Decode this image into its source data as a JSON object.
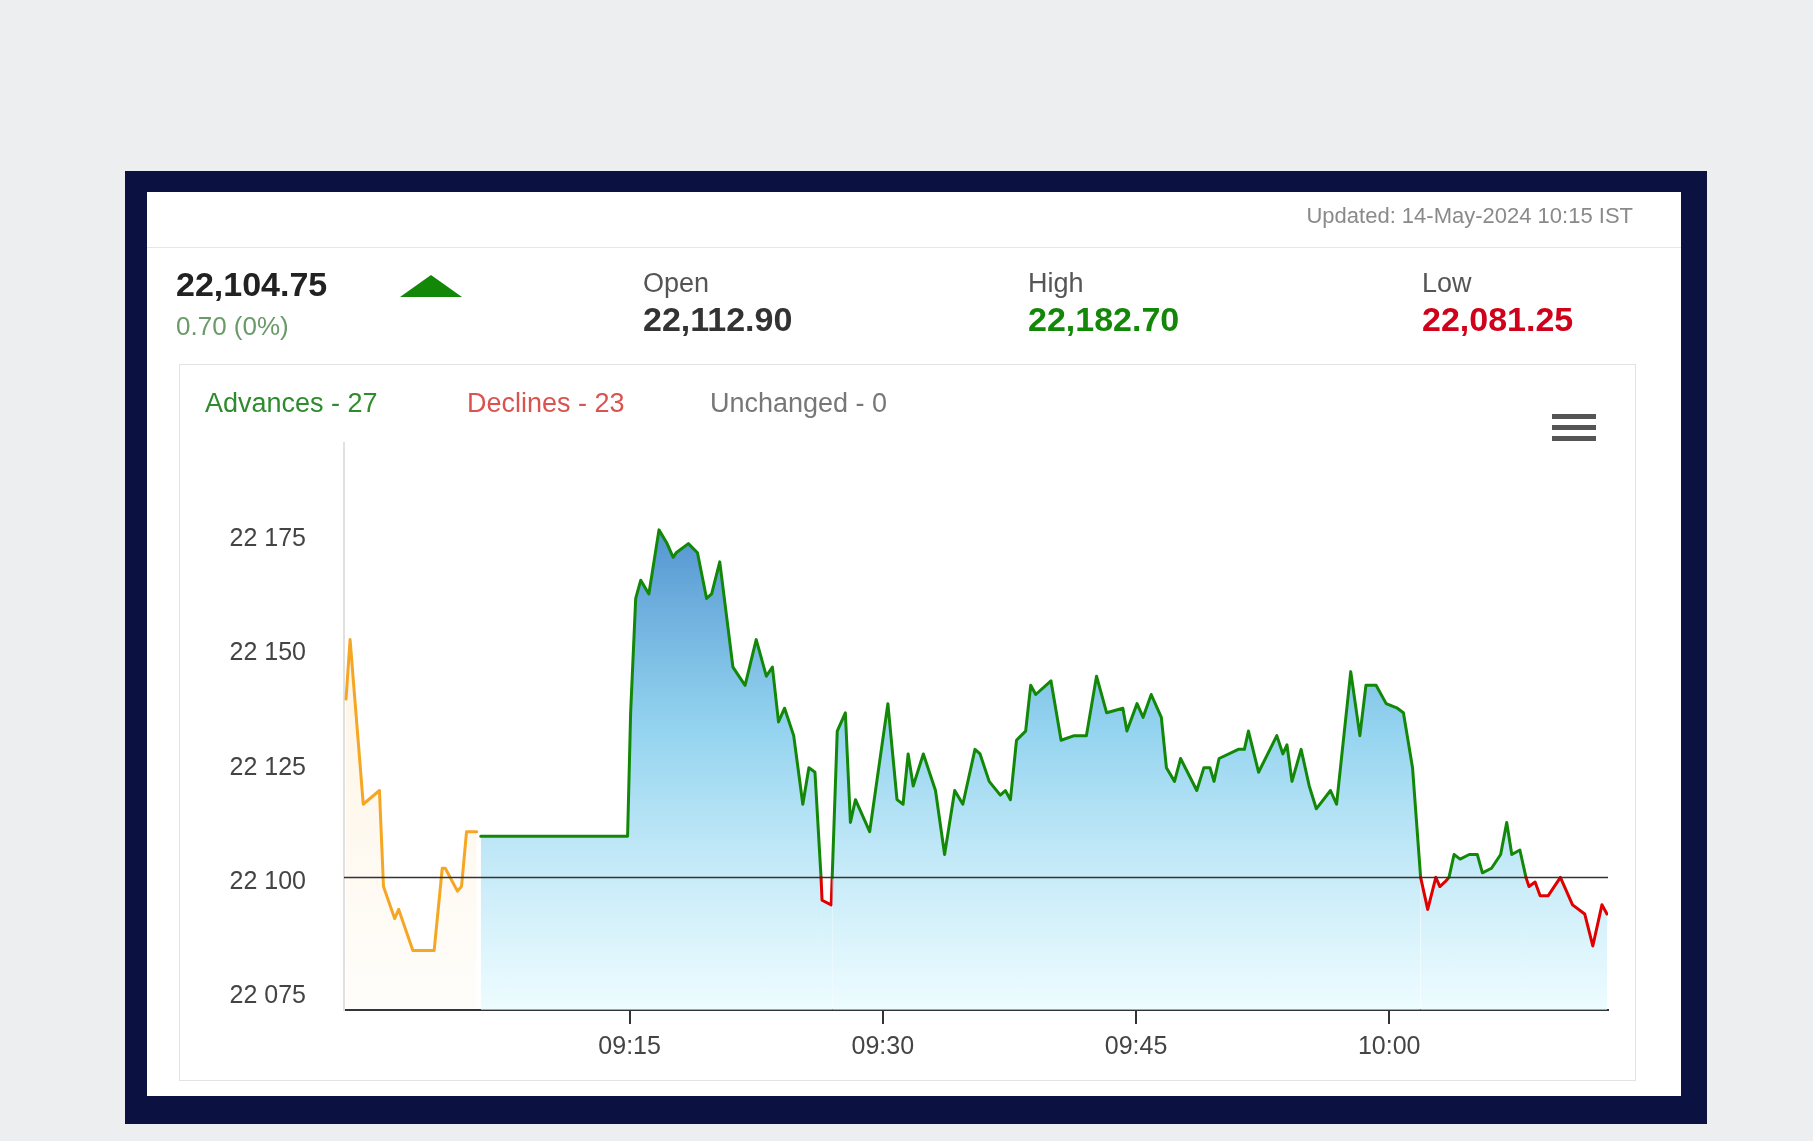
{
  "chart_data": {
    "type": "area",
    "annotations": [
      "Updated: 14-May-2024 10:15 IST",
      "22,104.75",
      "0.70 (0%)",
      "Open",
      "22,112.90",
      "High",
      "22,182.70",
      "Low",
      "22,081.25",
      "Advances - 27",
      "Declines - 23",
      "Unchanged - 0"
    ],
    "xlim": [
      8.968,
      10.216
    ],
    "xticks": [
      {
        "value": 9.25,
        "label": "09:15"
      },
      {
        "value": 9.5,
        "label": "09:30"
      },
      {
        "value": 9.75,
        "label": "09:45"
      },
      {
        "value": 10,
        "label": "10:00"
      }
    ],
    "ylim": [
      22072,
      22196
    ],
    "yticks": [
      {
        "value": 22075,
        "label": "22 075"
      },
      {
        "value": 22100,
        "label": "22 100"
      },
      {
        "value": 22125,
        "label": "22 125"
      },
      {
        "value": 22150,
        "label": "22 150"
      },
      {
        "value": 22175,
        "label": "22 175"
      }
    ],
    "grid": false,
    "legend": false,
    "marker": "none",
    "line_style": "solid",
    "ref_lines": [
      {
        "axis": "y",
        "value": 22101,
        "color": "#333333"
      }
    ],
    "series": [
      {
        "type": "area",
        "color": "#f5a623",
        "x": [
          8.97,
          8.974,
          8.987,
          9.003,
          9.007,
          9.018,
          9.022,
          9.036,
          9.048,
          9.057,
          9.065,
          9.068,
          9.08,
          9.084,
          9.089,
          9.099
        ],
        "values": [
          22140,
          22153,
          22117,
          22120,
          22099,
          22092,
          22094,
          22085,
          22085,
          22085,
          22103,
          22103,
          22098,
          22099,
          22111,
          22111
        ]
      },
      {
        "type": "area",
        "color": "#138808",
        "x": [
          9.103,
          9.248,
          9.251,
          9.256,
          9.261,
          9.269,
          9.279,
          9.287,
          9.293,
          9.296,
          9.308,
          9.317,
          9.326,
          9.331,
          9.339,
          9.352,
          9.364,
          9.375,
          9.385,
          9.391,
          9.397,
          9.403,
          9.412,
          9.421,
          9.427,
          9.433,
          9.439
        ],
        "values": [
          22110,
          22110,
          22137,
          22162,
          22166,
          22163,
          22177,
          22174,
          22171,
          22172,
          22174,
          22172,
          22162,
          22163,
          22170,
          22147,
          22143,
          22153,
          22145,
          22147,
          22135,
          22138,
          22132,
          22117,
          22125,
          22124,
          22101
        ]
      },
      {
        "type": "area",
        "color": "#e00000",
        "x": [
          9.439,
          9.44,
          9.449,
          9.45
        ],
        "values": [
          22101,
          22096,
          22095,
          22101
        ]
      },
      {
        "type": "area",
        "color": "#138808",
        "x": [
          9.45,
          9.455,
          9.463,
          9.468,
          9.473,
          9.487,
          9.505,
          9.514,
          9.52,
          9.525,
          9.53,
          9.54,
          9.552,
          9.561,
          9.571,
          9.579,
          9.591,
          9.596,
          9.605,
          9.616,
          9.621,
          9.626,
          9.632,
          9.641,
          9.646,
          9.651,
          9.666,
          9.676,
          9.689,
          9.701,
          9.711,
          9.721,
          9.737,
          9.741,
          9.751,
          9.757,
          9.765,
          9.775,
          9.78,
          9.788,
          9.794,
          9.81,
          9.817,
          9.823,
          9.827,
          9.832,
          9.851,
          9.857,
          9.861,
          9.871,
          9.889,
          9.895,
          9.899,
          9.904,
          9.913,
          9.921,
          9.928,
          9.942,
          9.948,
          9.962,
          9.971,
          9.977,
          9.987,
          9.997,
          10.008,
          10.014,
          10.023,
          10.031
        ],
        "values": [
          22101,
          22133,
          22137,
          22113,
          22118,
          22111,
          22139,
          22118,
          22117,
          22128,
          22121,
          22128,
          22120,
          22106,
          22120,
          22117,
          22129,
          22128,
          22122,
          22119,
          22120,
          22118,
          22131,
          22133,
          22143,
          22141,
          22144,
          22131,
          22132,
          22132,
          22145,
          22137,
          22138,
          22133,
          22139,
          22136,
          22141,
          22136,
          22125,
          22122,
          22127,
          22120,
          22125,
          22125,
          22122,
          22127,
          22129,
          22129,
          22133,
          22124,
          22132,
          22128,
          22130,
          22122,
          22129,
          22121,
          22116,
          22120,
          22117,
          22146,
          22132,
          22143,
          22143,
          22139,
          22138,
          22137,
          22125,
          22101
        ]
      },
      {
        "type": "area",
        "color": "#e00000",
        "x": [
          10.031,
          10.038,
          10.046,
          10.05,
          10.055,
          10.059
        ],
        "values": [
          22101,
          22094,
          22101,
          22099,
          22100,
          22101
        ]
      },
      {
        "type": "area",
        "color": "#138808",
        "x": [
          10.059,
          10.064,
          10.07,
          10.079,
          10.087,
          10.092,
          10.101,
          10.11,
          10.116,
          10.121,
          10.129,
          10.135
        ],
        "values": [
          22101,
          22106,
          22105,
          22106,
          22106,
          22102,
          22103,
          22106,
          22113,
          22106,
          22107,
          22101
        ]
      },
      {
        "type": "area",
        "color": "#e00000",
        "x": [
          10.135,
          10.138,
          10.144,
          10.149,
          10.157,
          10.169,
          10.181,
          10.193,
          10.201,
          10.21,
          10.215
        ],
        "values": [
          22101,
          22099,
          22100,
          22097,
          22097,
          22101,
          22095,
          22093,
          22086,
          22095,
          22093
        ]
      }
    ]
  }
}
